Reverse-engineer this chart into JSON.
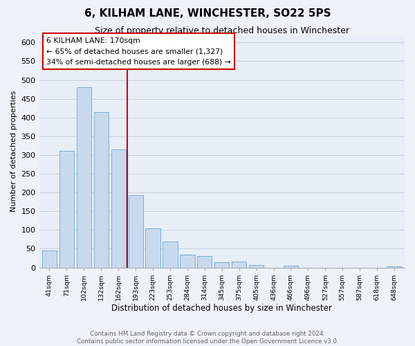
{
  "title": "6, KILHAM LANE, WINCHESTER, SO22 5PS",
  "subtitle": "Size of property relative to detached houses in Winchester",
  "xlabel": "Distribution of detached houses by size in Winchester",
  "ylabel": "Number of detached properties",
  "bar_labels": [
    "41sqm",
    "71sqm",
    "102sqm",
    "132sqm",
    "162sqm",
    "193sqm",
    "223sqm",
    "253sqm",
    "284sqm",
    "314sqm",
    "345sqm",
    "375sqm",
    "405sqm",
    "436sqm",
    "466sqm",
    "496sqm",
    "527sqm",
    "557sqm",
    "587sqm",
    "618sqm",
    "648sqm"
  ],
  "bar_values": [
    46,
    311,
    480,
    415,
    315,
    192,
    105,
    69,
    35,
    30,
    14,
    15,
    6,
    0,
    5,
    0,
    0,
    0,
    0,
    0,
    2
  ],
  "bar_color": "#c8d9ee",
  "bar_edge_color": "#7aaed4",
  "property_label": "6 KILHAM LANE: 170sqm",
  "annotation_line1": "← 65% of detached houses are smaller (1,327)",
  "annotation_line2": "34% of semi-detached houses are larger (688) →",
  "vline_color": "#cc0000",
  "vline_x_index": 4.5,
  "box_color": "#cc0000",
  "ylim": [
    0,
    620
  ],
  "yticks": [
    0,
    50,
    100,
    150,
    200,
    250,
    300,
    350,
    400,
    450,
    500,
    550,
    600
  ],
  "footer_line1": "Contains HM Land Registry data © Crown copyright and database right 2024.",
  "footer_line2": "Contains public sector information licensed under the Open Government Licence v3.0.",
  "background_color": "#eef2f9",
  "plot_bg_color": "#e8eef8",
  "grid_color": "#c8d0df"
}
